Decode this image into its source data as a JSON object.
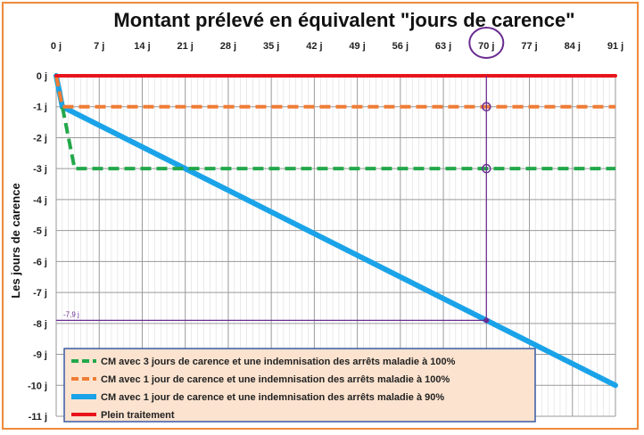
{
  "chart_data": {
    "type": "line",
    "title": "Montant prélevé en équivalent \"jours de carence\"",
    "ylabel": "Les jours de carence",
    "xlabel": "",
    "x_ticks": [
      "0 j",
      "7 j",
      "14 j",
      "21 j",
      "28 j",
      "35 j",
      "42 j",
      "49 j",
      "56 j",
      "63 j",
      "70 j",
      "77 j",
      "84 j",
      "91 j"
    ],
    "y_ticks": [
      "0 j",
      "-1 j",
      "-2 j",
      "-3 j",
      "-4 j",
      "-5 j",
      "-6 j",
      "-7 j",
      "-8 j",
      "-9 j",
      "-10 j",
      "-11 j"
    ],
    "xlim": [
      0,
      91
    ],
    "ylim": [
      -11,
      0
    ],
    "grid": true,
    "legend_position": "bottom-left",
    "series": [
      {
        "name": "CM avec 3 jours de carence et une indemnisation des arrêts maladie à 100%",
        "color": "#22a84a",
        "style": "dashed",
        "x": [
          0,
          1,
          3,
          91
        ],
        "y": [
          0,
          -1,
          -3,
          -3
        ]
      },
      {
        "name": "CM avec 1 jour de carence et une indemnisation des arrêts maladie à 100%",
        "color": "#f07c35",
        "style": "dashed",
        "x": [
          0,
          1,
          91
        ],
        "y": [
          0,
          -1,
          -1
        ]
      },
      {
        "name": "CM avec 1 jour de carence et une indemnisation des arrêts maladie à 90%",
        "color": "#1aa3e8",
        "style": "solid",
        "x": [
          0,
          1,
          91
        ],
        "y": [
          0,
          -1,
          -10
        ]
      },
      {
        "name": "Plein traitement",
        "color": "#e8141c",
        "style": "solid",
        "x": [
          0,
          91
        ],
        "y": [
          0,
          0
        ]
      }
    ],
    "annotations": {
      "label": "-7,9 j",
      "value_y": -7.9,
      "highlight_x": 70,
      "marker_color": "#6a2c91"
    }
  }
}
